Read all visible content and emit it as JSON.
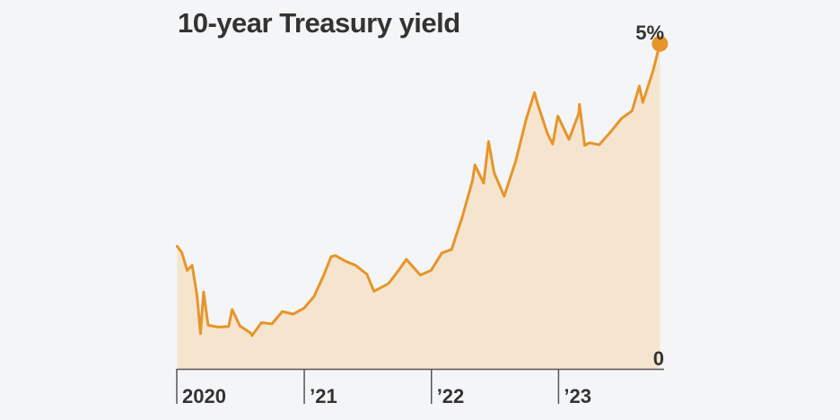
{
  "chart_data": {
    "type": "area",
    "title": "10-year Treasury yield",
    "xlabel": "",
    "ylabel": "",
    "x_tick_labels": [
      "2020",
      "’21",
      "’22",
      "’23"
    ],
    "y_tick_labels": [
      "0",
      "5%"
    ],
    "ylim": [
      0,
      5
    ],
    "xlim": [
      "2020-01-01",
      "2023-10-31"
    ],
    "grid": false,
    "colors": {
      "line": "#e6952a",
      "fill": "#f5e5cf",
      "marker": "#e6952a",
      "axis": "#555555",
      "text": "#333333"
    },
    "series": [
      {
        "x": [
          "2020-01-02",
          "2020-01-15",
          "2020-01-31",
          "2020-02-14",
          "2020-02-28",
          "2020-03-09",
          "2020-03-18",
          "2020-03-31",
          "2020-04-30",
          "2020-05-29",
          "2020-06-08",
          "2020-06-30",
          "2020-07-31",
          "2020-08-04",
          "2020-08-31",
          "2020-09-30",
          "2020-10-30",
          "2020-11-30",
          "2020-12-31",
          "2021-01-29",
          "2021-02-26",
          "2021-03-19",
          "2021-03-31",
          "2021-04-30",
          "2021-05-28",
          "2021-06-30",
          "2021-07-20",
          "2021-08-31",
          "2021-09-30",
          "2021-10-21",
          "2021-11-30",
          "2021-12-31",
          "2022-01-31",
          "2022-02-28",
          "2022-03-31",
          "2022-04-29",
          "2022-05-06",
          "2022-05-31",
          "2022-06-14",
          "2022-06-30",
          "2022-07-29",
          "2022-08-31",
          "2022-09-30",
          "2022-10-24",
          "2022-10-31",
          "2022-11-30",
          "2022-12-15",
          "2022-12-30",
          "2023-01-31",
          "2023-02-28",
          "2023-03-02",
          "2023-03-17",
          "2023-03-31",
          "2023-04-28",
          "2023-05-31",
          "2023-06-30",
          "2023-07-31",
          "2023-08-21",
          "2023-08-31",
          "2023-09-29",
          "2023-10-19"
        ],
        "y": [
          1.88,
          1.79,
          1.51,
          1.59,
          1.13,
          0.54,
          1.18,
          0.67,
          0.64,
          0.65,
          0.91,
          0.66,
          0.55,
          0.51,
          0.71,
          0.69,
          0.88,
          0.84,
          0.93,
          1.11,
          1.44,
          1.72,
          1.74,
          1.65,
          1.59,
          1.45,
          1.19,
          1.31,
          1.52,
          1.68,
          1.44,
          1.51,
          1.78,
          1.83,
          2.34,
          2.89,
          3.13,
          2.85,
          3.49,
          3.01,
          2.65,
          3.19,
          3.83,
          4.24,
          4.1,
          3.61,
          3.45,
          3.88,
          3.52,
          3.92,
          4.06,
          3.43,
          3.47,
          3.44,
          3.64,
          3.84,
          3.96,
          4.34,
          4.09,
          4.57,
          4.99
        ]
      }
    ]
  }
}
